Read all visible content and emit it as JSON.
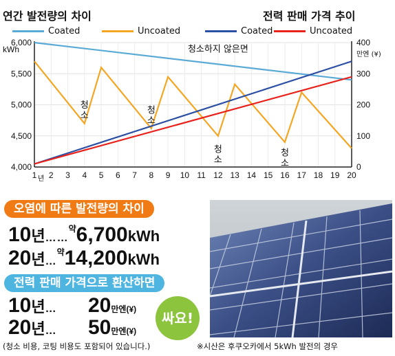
{
  "left_title": "연간 발전량의 차이",
  "right_title": "전력 판매 가격 추이",
  "legend": [
    {
      "label": "Coated",
      "color": "#5aaad6"
    },
    {
      "label": "Uncoated",
      "color": "#f4a623"
    },
    {
      "label": "Coated",
      "color": "#2b4fa3"
    },
    {
      "label": "Uncoated",
      "color": "#e8221b"
    }
  ],
  "chart_data": {
    "type": "line",
    "x": [
      1,
      2,
      3,
      4,
      5,
      6,
      7,
      8,
      9,
      10,
      11,
      12,
      13,
      14,
      15,
      16,
      17,
      18,
      19,
      20
    ],
    "x_tick_labels": [
      "1",
      "2",
      "3",
      "4",
      "5",
      "6",
      "7",
      "8",
      "9",
      "10",
      "11",
      "12",
      "13",
      "14",
      "15",
      "16",
      "17",
      "18",
      "19",
      "20"
    ],
    "x_first_suffix": "년",
    "xlim": [
      1,
      20
    ],
    "left_axis": {
      "unit": "kWh",
      "ylim": [
        4000,
        6000
      ],
      "ticks": [
        "4,000",
        "4,500",
        "5,000",
        "5,500",
        "6,000"
      ],
      "tick_values": [
        4000,
        4500,
        5000,
        5500,
        6000
      ]
    },
    "right_axis": {
      "unit": "만엔 (¥)",
      "ylim": [
        0,
        400
      ],
      "ticks": [
        "0",
        "100",
        "200",
        "300",
        "400"
      ],
      "tick_values": [
        0,
        100,
        200,
        300,
        400
      ]
    },
    "series": [
      {
        "name": "Coated",
        "axis": "left",
        "color": "#5aaad6",
        "x": [
          1,
          20
        ],
        "values": [
          6000,
          5400
        ]
      },
      {
        "name": "Uncoated",
        "axis": "left",
        "color": "#f4a623",
        "x": [
          1,
          4,
          5,
          8,
          9,
          12,
          13,
          16,
          17,
          20
        ],
        "values": [
          5700,
          4700,
          5600,
          4620,
          5450,
          4500,
          5330,
          4400,
          5200,
          4300
        ]
      },
      {
        "name": "Coated",
        "axis": "right",
        "color": "#2b4fa3",
        "x": [
          1,
          20
        ],
        "values": [
          10,
          340
        ]
      },
      {
        "name": "Uncoated",
        "axis": "right",
        "color": "#e8221b",
        "x": [
          1,
          20
        ],
        "values": [
          10,
          290
        ]
      }
    ],
    "annotations": [
      {
        "text": "청소하지 않은면",
        "x": 12,
        "y": 5850,
        "axis": "left"
      },
      {
        "text": "청\n소",
        "x": 4,
        "y": 4950,
        "axis": "left"
      },
      {
        "text": "청\n소",
        "x": 8,
        "y": 4870,
        "axis": "left"
      },
      {
        "text": "청\n소",
        "x": 12,
        "y": 4240,
        "axis": "left"
      },
      {
        "text": "청\n소",
        "x": 16,
        "y": 4180,
        "axis": "left"
      }
    ],
    "grid": true
  },
  "diff_pill": {
    "label": "오염에 따른 발전량의 차이",
    "color": "#f07b14"
  },
  "diff_rows": [
    {
      "years": "10",
      "nyeon": "년",
      "dots": "……",
      "approx": "약",
      "value": "6,700",
      "unit": "kWh"
    },
    {
      "years": "20",
      "nyeon": "년",
      "dots": "…",
      "approx": "약",
      "value": "14,200",
      "unit": "kWh"
    }
  ],
  "price_pill": {
    "label": "전력 판매 가격으로 환산하면",
    "color": "#4db5e0"
  },
  "price_rows": [
    {
      "years": "10",
      "nyeon": "년",
      "dots": "…",
      "value": "20",
      "unit": "만엔(¥)"
    },
    {
      "years": "20",
      "nyeon": "년",
      "dots": "…",
      "value": "50",
      "unit": "만엔(¥)"
    }
  ],
  "badge": "싸요!",
  "footnote_left": "(청소 비용, 코팅 비용도 포함되어 있습니다.)",
  "footnote_right": "※시산은 후쿠오카에서 5kWh 발전의 경우"
}
